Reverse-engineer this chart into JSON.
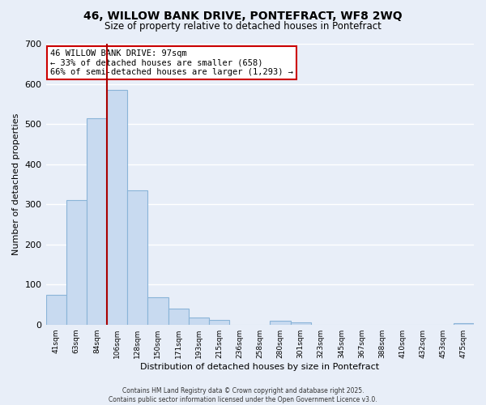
{
  "title": "46, WILLOW BANK DRIVE, PONTEFRACT, WF8 2WQ",
  "subtitle": "Size of property relative to detached houses in Pontefract",
  "xlabel": "Distribution of detached houses by size in Pontefract",
  "ylabel": "Number of detached properties",
  "bar_labels": [
    "41sqm",
    "63sqm",
    "84sqm",
    "106sqm",
    "128sqm",
    "150sqm",
    "171sqm",
    "193sqm",
    "215sqm",
    "236sqm",
    "258sqm",
    "280sqm",
    "301sqm",
    "323sqm",
    "345sqm",
    "367sqm",
    "388sqm",
    "410sqm",
    "432sqm",
    "453sqm",
    "475sqm"
  ],
  "bar_values": [
    75,
    310,
    515,
    585,
    335,
    68,
    40,
    18,
    12,
    0,
    0,
    10,
    5,
    0,
    0,
    0,
    0,
    0,
    0,
    0,
    4
  ],
  "bar_color": "#c8daf0",
  "bar_edge_color": "#8ab4d8",
  "ylim": [
    0,
    700
  ],
  "yticks": [
    0,
    100,
    200,
    300,
    400,
    500,
    600,
    700
  ],
  "annotation_line1": "46 WILLOW BANK DRIVE: 97sqm",
  "annotation_line2": "← 33% of detached houses are smaller (658)",
  "annotation_line3": "66% of semi-detached houses are larger (1,293) →",
  "annotation_box_color": "#ffffff",
  "annotation_border_color": "#cc0000",
  "vline_color": "#aa0000",
  "footer_line1": "Contains HM Land Registry data © Crown copyright and database right 2025.",
  "footer_line2": "Contains public sector information licensed under the Open Government Licence v3.0.",
  "background_color": "#e8eef8",
  "grid_color": "#ffffff"
}
